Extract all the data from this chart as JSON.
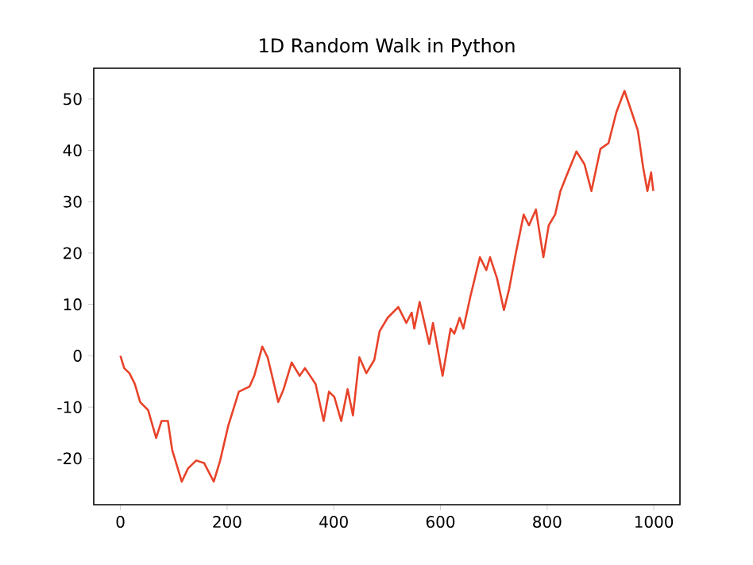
{
  "chart_data": {
    "type": "line",
    "title": "1D Random Walk in Python",
    "x": [
      0,
      7,
      17,
      27,
      37,
      52,
      67,
      77,
      89,
      97,
      115,
      127,
      142,
      157,
      175,
      187,
      202,
      222,
      242,
      251,
      266,
      276,
      296,
      306,
      321,
      336,
      346,
      366,
      381,
      391,
      401,
      414,
      426,
      436,
      448,
      461,
      476,
      486,
      501,
      521,
      536,
      546,
      551,
      561,
      579,
      586,
      604,
      619,
      626,
      636,
      643,
      656,
      674,
      686,
      693,
      706,
      719,
      729,
      741,
      756,
      766,
      779,
      793,
      803,
      815,
      825,
      835,
      855,
      870,
      883,
      900,
      915,
      930,
      945,
      960,
      970,
      980,
      988,
      995,
      999
    ],
    "series": [
      {
        "color": "#e8432a",
        "values": [
          0,
          -2.4,
          -3.4,
          -5.5,
          -9,
          -10.6,
          -16,
          -12.7,
          -12.7,
          -18.3,
          -24.5,
          -21.9,
          -20.4,
          -20.9,
          -24.5,
          -20.4,
          -13.7,
          -7,
          -6,
          -3.9,
          1.8,
          -0.3,
          -9,
          -6.5,
          -1.3,
          -3.9,
          -2.4,
          -5.5,
          -12.7,
          -7,
          -8,
          -12.7,
          -6.5,
          -11.6,
          -0.3,
          -3.4,
          -0.8,
          4.8,
          7.4,
          9.5,
          6.4,
          8.4,
          5.3,
          10.5,
          2.3,
          6.4,
          -3.9,
          5.3,
          4.3,
          7.4,
          5.3,
          11.5,
          19.2,
          16.7,
          19.2,
          15.1,
          8.9,
          13.1,
          19.8,
          27.5,
          25.4,
          28.5,
          19.2,
          25.4,
          27.5,
          32.1,
          34.7,
          39.8,
          37.3,
          32.1,
          40.3,
          41.4,
          47.5,
          51.6,
          47,
          43.9,
          36.7,
          32.1,
          35.7,
          32.1
        ]
      }
    ],
    "xlim": [
      -50,
      1049
    ],
    "ylim": [
      -29,
      56
    ],
    "xticks": [
      0,
      200,
      400,
      600,
      800,
      1000
    ],
    "yticks": [
      -20,
      -10,
      0,
      10,
      20,
      30,
      40,
      50
    ],
    "grid": false,
    "marker": "none",
    "line_style": "solid"
  }
}
